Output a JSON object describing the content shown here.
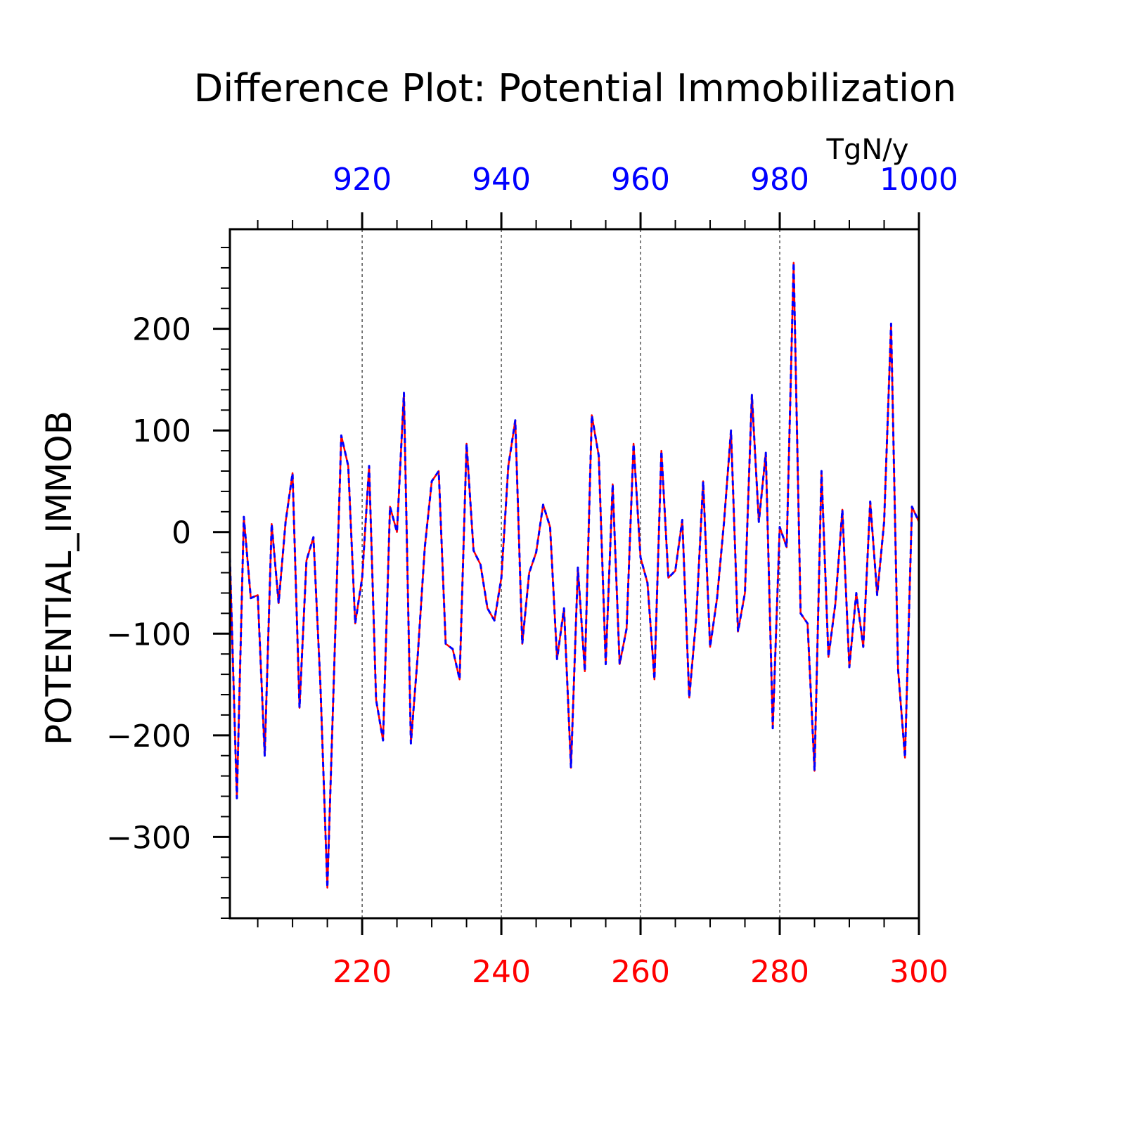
{
  "title": "Difference Plot: Potential Immobilization",
  "units": "TgN/y",
  "ylabel": "POTENTIAL_IMMOB",
  "colors": {
    "bottom_axis": "#ff0000",
    "top_axis": "#0000ff",
    "line_a": "#ff0000",
    "line_b": "#0000ff",
    "frame": "#000000",
    "grid": "#000000"
  },
  "chart_data": {
    "type": "line",
    "title": "Difference Plot: Potential Immobilization",
    "ylabel": "POTENTIAL_IMMOB",
    "units": "TgN/y",
    "x_bottom": {
      "range": [
        201,
        300
      ],
      "ticks": [
        220,
        240,
        260,
        280,
        300
      ],
      "color": "#ff0000"
    },
    "x_top": {
      "range": [
        901,
        1000
      ],
      "ticks": [
        920,
        940,
        960,
        980,
        1000
      ],
      "color": "#0000ff"
    },
    "ylim": [
      -380,
      298
    ],
    "yticks": [
      200,
      100,
      0,
      -100,
      -200,
      -300
    ],
    "grid": "vertical dashed at major x ticks",
    "x": [
      201,
      202,
      203,
      204,
      205,
      206,
      207,
      208,
      209,
      210,
      211,
      212,
      213,
      214,
      215,
      216,
      217,
      218,
      219,
      220,
      221,
      222,
      223,
      224,
      225,
      226,
      227,
      228,
      229,
      230,
      231,
      232,
      233,
      234,
      235,
      236,
      237,
      238,
      239,
      240,
      241,
      242,
      243,
      244,
      245,
      246,
      247,
      248,
      249,
      250,
      251,
      252,
      253,
      254,
      255,
      256,
      257,
      258,
      259,
      260,
      261,
      262,
      263,
      264,
      265,
      266,
      267,
      268,
      269,
      270,
      271,
      272,
      273,
      274,
      275,
      276,
      277,
      278,
      279,
      280,
      281,
      282,
      283,
      284,
      285,
      286,
      287,
      288,
      289,
      290,
      291,
      292,
      293,
      294,
      295,
      296,
      297,
      298,
      299,
      300
    ],
    "series": [
      {
        "style": "red solid",
        "values": [
          -25,
          -262,
          15,
          -65,
          -62,
          -220,
          8,
          -70,
          10,
          58,
          -173,
          -28,
          -5,
          -150,
          -350,
          -130,
          95,
          65,
          -90,
          -45,
          65,
          -165,
          -205,
          25,
          0,
          137,
          -208,
          -120,
          -15,
          50,
          60,
          -110,
          -115,
          -145,
          87,
          -18,
          -32,
          -75,
          -87,
          -45,
          65,
          110,
          -110,
          -40,
          -20,
          27,
          5,
          -125,
          -75,
          -232,
          -35,
          -137,
          115,
          75,
          -130,
          47,
          -130,
          -95,
          87,
          -25,
          -50,
          -145,
          80,
          -45,
          -38,
          12,
          -163,
          -85,
          50,
          -113,
          -65,
          10,
          100,
          -98,
          -60,
          135,
          10,
          78,
          -193,
          5,
          -15,
          265,
          -80,
          -90,
          -235,
          60,
          -123,
          -70,
          22,
          -133,
          -60,
          -113,
          30,
          -62,
          10,
          205,
          -135,
          -222,
          25,
          10
        ]
      },
      {
        "style": "blue dashed",
        "values": [
          -25,
          -262,
          15,
          -65,
          -62,
          -220,
          8,
          -70,
          10,
          58,
          -173,
          -28,
          -5,
          -150,
          -350,
          -130,
          95,
          65,
          -90,
          -45,
          65,
          -165,
          -205,
          25,
          0,
          137,
          -208,
          -120,
          -15,
          50,
          60,
          -110,
          -115,
          -145,
          87,
          -18,
          -32,
          -75,
          -87,
          -45,
          65,
          110,
          -110,
          -40,
          -20,
          27,
          5,
          -125,
          -75,
          -232,
          -35,
          -137,
          115,
          75,
          -130,
          47,
          -130,
          -95,
          87,
          -25,
          -50,
          -145,
          80,
          -45,
          -38,
          12,
          -163,
          -85,
          50,
          -113,
          -65,
          10,
          100,
          -98,
          -60,
          135,
          10,
          78,
          -193,
          5,
          -15,
          265,
          -80,
          -90,
          -235,
          60,
          -123,
          -70,
          22,
          -133,
          -60,
          -113,
          30,
          -62,
          10,
          205,
          -135,
          -222,
          25,
          10
        ]
      }
    ]
  }
}
